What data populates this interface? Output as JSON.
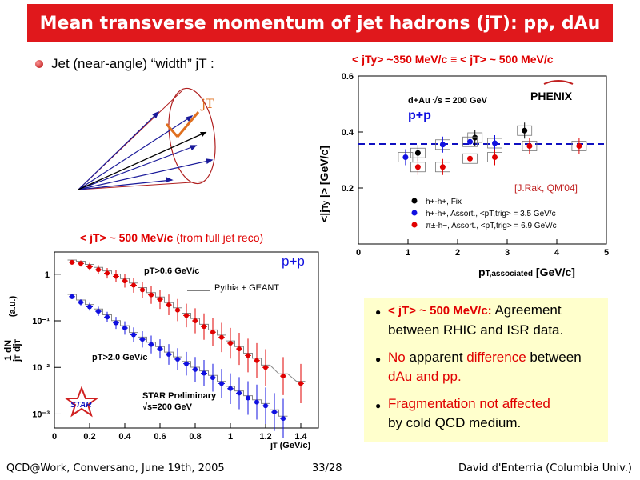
{
  "slide": {
    "title": "Mean transverse momentum of jet hadrons (jT): pp, dAu",
    "bullet_main": "Jet (near-angle) “width” jT :",
    "cone_label": "jT",
    "footer": {
      "left": "QCD@Work, Conversano, June 19th, 2005",
      "center": "33/28",
      "right": "David d'Enterria (Columbia Univ.)"
    }
  },
  "right_plot": {
    "heading": "< jTy> ~350 MeV/c ≡ < jT> ~ 500 MeV/c",
    "energy_label": "d+Au √s = 200 GeV",
    "system_label": "p+p",
    "logo": "PHENIX",
    "citation": "[J.Rak, QM'04]",
    "legend": [
      {
        "label": "h+-h+, Fix",
        "color": "#000000"
      },
      {
        "label": "h+-h+, Assort., <pT,trig> = 3.5 GeV/c",
        "color": "#1010e0"
      },
      {
        "label": "π±-h−, Assort., <pT,trig> = 6.9 GeV/c",
        "color": "#e00000"
      }
    ]
  },
  "left_plot": {
    "heading_main": "< jT> ~ 500 MeV/c",
    "heading_sub": "(from full jet reco)",
    "system_label": "p+p",
    "sim_label": "Pythia + GEANT",
    "pt_cut_high": "pT>0.6 GeV/c",
    "pt_cut_low": "pT>2.0 GeV/c",
    "preliminary": "STAR Preliminary",
    "energy": "√s=200 GeV",
    "logo": "STAR"
  },
  "info_box": {
    "item1_bold": "< jT> ~ 500 MeV/c:",
    "item1_rest": " Agreement between RHIC and ISR data.",
    "item2_red1": "No",
    "item2_black1": " apparent ",
    "item2_red2": "difference",
    "item2_black2": " between ",
    "item2_red3": "dAu and pp.",
    "item3_red": "Fragmentation not affected",
    "item3_black": "by cold QCD medium."
  },
  "chart_data": [
    {
      "type": "scatter",
      "title": "< jTy> ~350 MeV/c ≡ < jT> ~ 500 MeV/c",
      "xlabel": "pT,associated [GeV/c]",
      "ylabel": "<|jTy|> [GeV/c]",
      "xlim": [
        0,
        5
      ],
      "ylim": [
        0,
        0.6
      ],
      "xticks": [
        0,
        1,
        2,
        3,
        4,
        5
      ],
      "yticks": [
        0.2,
        0.4,
        0.6
      ],
      "reference_line": 0.357,
      "series": [
        {
          "name": "h+-h+, Fix",
          "color": "#000000",
          "x": [
            1.2,
            2.35,
            3.35
          ],
          "y": [
            0.325,
            0.38,
            0.405
          ]
        },
        {
          "name": "h+-h+, Assort., <pT,trig> = 3.5 GeV/c",
          "color": "#1010e0",
          "x": [
            0.95,
            1.7,
            2.25,
            2.75
          ],
          "y": [
            0.31,
            0.355,
            0.365,
            0.36
          ]
        },
        {
          "name": "π±-h−, Assort., <pT,trig> = 6.9 GeV/c",
          "color": "#e00000",
          "x": [
            1.2,
            1.7,
            2.25,
            2.75,
            3.45,
            4.45
          ],
          "y": [
            0.275,
            0.275,
            0.305,
            0.31,
            0.35,
            0.35
          ]
        }
      ]
    },
    {
      "type": "scatter",
      "title": "< jT> ~ 500 MeV/c (from full jet reco)",
      "xlabel": "jT (GeV/c)",
      "ylabel": "1/jT dN/djT (a.u.)",
      "xlim": [
        0,
        1.5
      ],
      "ylim": [
        0.0005,
        3
      ],
      "yscale": "log",
      "xticks": [
        0,
        0.2,
        0.4,
        0.6,
        0.8,
        1,
        1.2,
        1.4
      ],
      "yticks": [
        1,
        0.1,
        0.01,
        0.001
      ],
      "series": [
        {
          "name": "pT>0.6 GeV/c",
          "color": "#e00000",
          "x": [
            0.1,
            0.15,
            0.2,
            0.25,
            0.3,
            0.35,
            0.4,
            0.45,
            0.5,
            0.55,
            0.6,
            0.65,
            0.7,
            0.75,
            0.8,
            0.85,
            0.9,
            0.95,
            1.0,
            1.05,
            1.1,
            1.15,
            1.2,
            1.3,
            1.4
          ],
          "y": [
            1.8,
            1.7,
            1.45,
            1.25,
            1.05,
            0.9,
            0.72,
            0.58,
            0.46,
            0.36,
            0.29,
            0.22,
            0.17,
            0.13,
            0.1,
            0.075,
            0.057,
            0.044,
            0.033,
            0.025,
            0.018,
            0.014,
            0.01,
            0.0065,
            0.0045
          ]
        },
        {
          "name": "pT>2.0 GeV/c",
          "color": "#1010e0",
          "x": [
            0.1,
            0.15,
            0.2,
            0.25,
            0.3,
            0.35,
            0.4,
            0.45,
            0.5,
            0.55,
            0.6,
            0.65,
            0.7,
            0.75,
            0.8,
            0.85,
            0.9,
            0.95,
            1.0,
            1.05,
            1.1,
            1.15,
            1.2,
            1.25,
            1.3
          ],
          "y": [
            0.33,
            0.25,
            0.2,
            0.16,
            0.12,
            0.09,
            0.07,
            0.05,
            0.04,
            0.031,
            0.025,
            0.019,
            0.015,
            0.012,
            0.009,
            0.0075,
            0.006,
            0.0045,
            0.0035,
            0.0028,
            0.0022,
            0.0018,
            0.0015,
            0.0011,
            0.0008
          ]
        }
      ]
    }
  ]
}
